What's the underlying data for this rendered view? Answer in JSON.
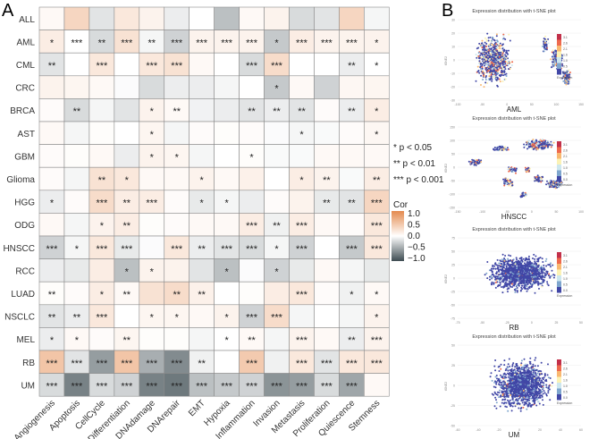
{
  "panel_labels": {
    "a": "A",
    "b": "B"
  },
  "chart_data": [
    {
      "type": "heatmap",
      "rows": [
        "ALL",
        "AML",
        "CML",
        "CRC",
        "BRCA",
        "AST",
        "GBM",
        "Glioma",
        "HGG",
        "ODG",
        "HNSCC",
        "RCC",
        "LUAD",
        "NSCLC",
        "MEL",
        "RB",
        "UM"
      ],
      "columns": [
        "Angiogenesis",
        "Apoptosis",
        "CellCycle",
        "Differentiation",
        "DNAdamage",
        "DNArepair",
        "EMT",
        "Hypoxia",
        "Inflammation",
        "Invasion",
        "Metastasis",
        "Proliferation",
        "Quiescence",
        "Stemness"
      ],
      "values": [
        [
          0.05,
          0.35,
          -0.15,
          0.2,
          0.1,
          -0.1,
          0,
          -0.35,
          0.05,
          0.1,
          -0.2,
          -0.15,
          0.35,
          -0.05
        ],
        [
          0.15,
          0,
          -0.2,
          0.25,
          -0.05,
          -0.25,
          0.1,
          0.1,
          0.1,
          -0.3,
          0.15,
          0.1,
          0.1,
          0.1
        ],
        [
          -0.15,
          0,
          0.2,
          0,
          0.2,
          0.25,
          0.05,
          0,
          -0.2,
          0.3,
          0,
          0,
          -0.1,
          0
        ],
        [
          0.1,
          0.08,
          0.05,
          -0.02,
          -0.2,
          -0.1,
          -0.1,
          -0.05,
          0,
          -0.3,
          0.05,
          -0.25,
          0.07,
          0.08
        ],
        [
          0.03,
          -0.2,
          -0.05,
          -0.15,
          0.1,
          0.05,
          -0.07,
          -0.1,
          -0.15,
          -0.1,
          -0.15,
          0.03,
          -0.1,
          0.15
        ],
        [
          0.05,
          -0.05,
          0.02,
          0,
          0.08,
          -0.05,
          0.03,
          0.02,
          0.03,
          -0.02,
          -0.05,
          -0.03,
          0.03,
          0.07
        ],
        [
          0.03,
          0.02,
          0.05,
          -0.1,
          0.1,
          0.08,
          -0.05,
          0,
          0.02,
          -0.03,
          -0.03,
          0.05,
          0.05,
          0.05
        ],
        [
          0.03,
          -0.05,
          0.25,
          0.2,
          0.05,
          0.05,
          0.1,
          0.05,
          0.12,
          0,
          0.15,
          0.1,
          -0.03,
          0.15
        ],
        [
          -0.1,
          0.03,
          0.3,
          0.15,
          0.15,
          0.03,
          -0.12,
          -0.05,
          -0.1,
          0.03,
          0.1,
          -0.12,
          -0.15,
          0.35
        ],
        [
          0.05,
          -0.05,
          0.1,
          0.15,
          0.02,
          0.03,
          0.05,
          0.05,
          0.15,
          -0.08,
          0.15,
          0.05,
          0.03,
          0.2
        ],
        [
          -0.25,
          -0.05,
          0.2,
          -0.12,
          -0.02,
          0.2,
          -0.1,
          -0.15,
          -0.2,
          -0.05,
          -0.25,
          0,
          -0.3,
          0.2
        ],
        [
          -0.1,
          -0.12,
          0.15,
          -0.35,
          0.1,
          0.1,
          -0.15,
          -0.35,
          -0.02,
          -0.25,
          -0.12,
          0.05,
          -0.05,
          -0.12
        ],
        [
          0.02,
          0.03,
          0.15,
          0.05,
          0.25,
          0.3,
          0.12,
          0,
          0.02,
          0.15,
          0.2,
          0.03,
          -0.08,
          0.05
        ],
        [
          -0.15,
          -0.1,
          0.2,
          0,
          0.08,
          0.08,
          0.05,
          0.1,
          -0.25,
          0.3,
          -0.05,
          0,
          -0.05,
          0.1
        ],
        [
          -0.1,
          0.05,
          0.03,
          0.08,
          0.02,
          0.02,
          -0.05,
          0,
          0.05,
          -0.05,
          0.1,
          0.05,
          -0.1,
          0.1
        ],
        [
          0.5,
          -0.15,
          -0.55,
          0.5,
          -0.45,
          -0.65,
          -0.08,
          0,
          0.45,
          -0.08,
          0.2,
          -0.15,
          0.2,
          0.2
        ],
        [
          -0.2,
          -0.7,
          -0.2,
          -0.25,
          -0.7,
          -0.75,
          -0.35,
          -0.3,
          -0.25,
          -0.6,
          -0.55,
          -0.2,
          -0.5,
          0.05
        ]
      ],
      "significance": [
        [
          "",
          "",
          "",
          "",
          "",
          "",
          "",
          "",
          "",
          "",
          "",
          "",
          "",
          ""
        ],
        [
          "*",
          "***",
          "**",
          "***",
          "**",
          "***",
          "***",
          "***",
          "***",
          "*",
          "***",
          "***",
          "***",
          "*"
        ],
        [
          "**",
          "",
          "***",
          "",
          "***",
          "***",
          "",
          "",
          "***",
          "***",
          "",
          "",
          "**",
          "*"
        ],
        [
          "",
          "",
          "",
          "",
          "",
          "",
          "",
          "",
          "",
          "*",
          "",
          "",
          "",
          ""
        ],
        [
          "",
          "**",
          "",
          "",
          "*",
          "**",
          "",
          "",
          "**",
          "**",
          "**",
          "",
          "**",
          "*"
        ],
        [
          "",
          "",
          "",
          "",
          "*",
          "",
          "",
          "",
          "",
          "",
          "*",
          "",
          "",
          "*"
        ],
        [
          "",
          "",
          "",
          "",
          "*",
          "*",
          "",
          "",
          "*",
          "",
          "",
          "",
          "",
          ""
        ],
        [
          "",
          "",
          "**",
          "*",
          "",
          "",
          "*",
          "",
          "",
          "",
          "*",
          "**",
          "",
          "**"
        ],
        [
          "*",
          "",
          "***",
          "**",
          "***",
          "",
          "*",
          "*",
          "",
          "",
          "",
          "**",
          "**",
          "***"
        ],
        [
          "",
          "",
          "*",
          "**",
          "",
          "",
          "",
          "",
          "***",
          "**",
          "***",
          "",
          "",
          "***"
        ],
        [
          "***",
          "*",
          "***",
          "***",
          "",
          "***",
          "**",
          "***",
          "***",
          "*",
          "***",
          "",
          "***",
          "***"
        ],
        [
          "",
          "",
          "",
          "*",
          "*",
          "",
          "",
          "*",
          "",
          "*",
          "",
          "",
          "",
          ""
        ],
        [
          "**",
          "",
          "*",
          "**",
          "",
          "**",
          "**",
          "",
          "",
          "",
          "***",
          "",
          "*",
          "*"
        ],
        [
          "**",
          "**",
          "***",
          "",
          "*",
          "*",
          "",
          "*",
          "***",
          "***",
          "",
          "",
          "",
          "*"
        ],
        [
          "*",
          "*",
          "",
          "**",
          "",
          "",
          "",
          "*",
          "**",
          "",
          "***",
          "",
          "**",
          "***"
        ],
        [
          "***",
          "***",
          "***",
          "***",
          "***",
          "***",
          "**",
          "",
          "***",
          "",
          "***",
          "***",
          "***",
          "***"
        ],
        [
          "***",
          "***",
          "***",
          "***",
          "***",
          "***",
          "***",
          "***",
          "***",
          "***",
          "***",
          "***",
          "***",
          ""
        ]
      ],
      "significance_legend": [
        "* p < 0.05",
        "** p < 0.01",
        "*** p < 0.001"
      ],
      "colorbar": {
        "title": "Cor",
        "ticks": [
          "1.0",
          "0.5",
          "0.0",
          "−0.5",
          "−1.0"
        ],
        "range": [
          -1,
          1
        ],
        "colors": {
          "high": "#E48A4E",
          "mid": "#FFFFFF",
          "low": "#3E4C52"
        }
      }
    },
    {
      "type": "scatter",
      "panels": [
        {
          "title": "Expression distribution with t-SNE plot",
          "label": "AML",
          "ylabel": "tSNE2",
          "xticks": [
            "-100",
            "-50",
            "0",
            "50",
            "100",
            "150"
          ],
          "yticks": [
            "30",
            "20",
            "10",
            "0",
            "-10",
            "-20",
            "-30"
          ]
        },
        {
          "title": "Expression distribution with t-SNE plot",
          "label": "HNSCC",
          "ylabel": "tSNE2",
          "xticks": [
            "-150",
            "-100",
            "-50",
            "0",
            "50",
            "100"
          ],
          "yticks": [
            "150",
            "100",
            "50",
            "0",
            "-50",
            "-100",
            "-150"
          ]
        },
        {
          "title": "Expression distribution with t-SNE plot",
          "label": "RB",
          "ylabel": "tSNE2",
          "xticks": [
            "-75",
            "-50",
            "-25",
            "0",
            "25",
            "50"
          ],
          "yticks": [
            "75",
            "50",
            "25",
            "0",
            "-25",
            "-50",
            "-75"
          ]
        },
        {
          "title": "Expression distribution with t-SNE plot",
          "label": "UM",
          "ylabel": "tSNE2",
          "xticks": [
            "-60",
            "-40",
            "-20",
            "0",
            "20",
            "40",
            "60"
          ],
          "yticks": [
            "50",
            "25",
            "0",
            "-25",
            "-50"
          ]
        }
      ],
      "legend": {
        "title": "Expression",
        "ticks": [
          "3.1",
          "2.6",
          "2.1",
          "1.6",
          "1.0",
          "0.5",
          "0.0"
        ],
        "colors": [
          "#C2304A",
          "#EE6A4E",
          "#F9B871",
          "#FBF2B5",
          "#CDE7EE",
          "#7FA6CE",
          "#4147A6"
        ]
      }
    }
  ]
}
